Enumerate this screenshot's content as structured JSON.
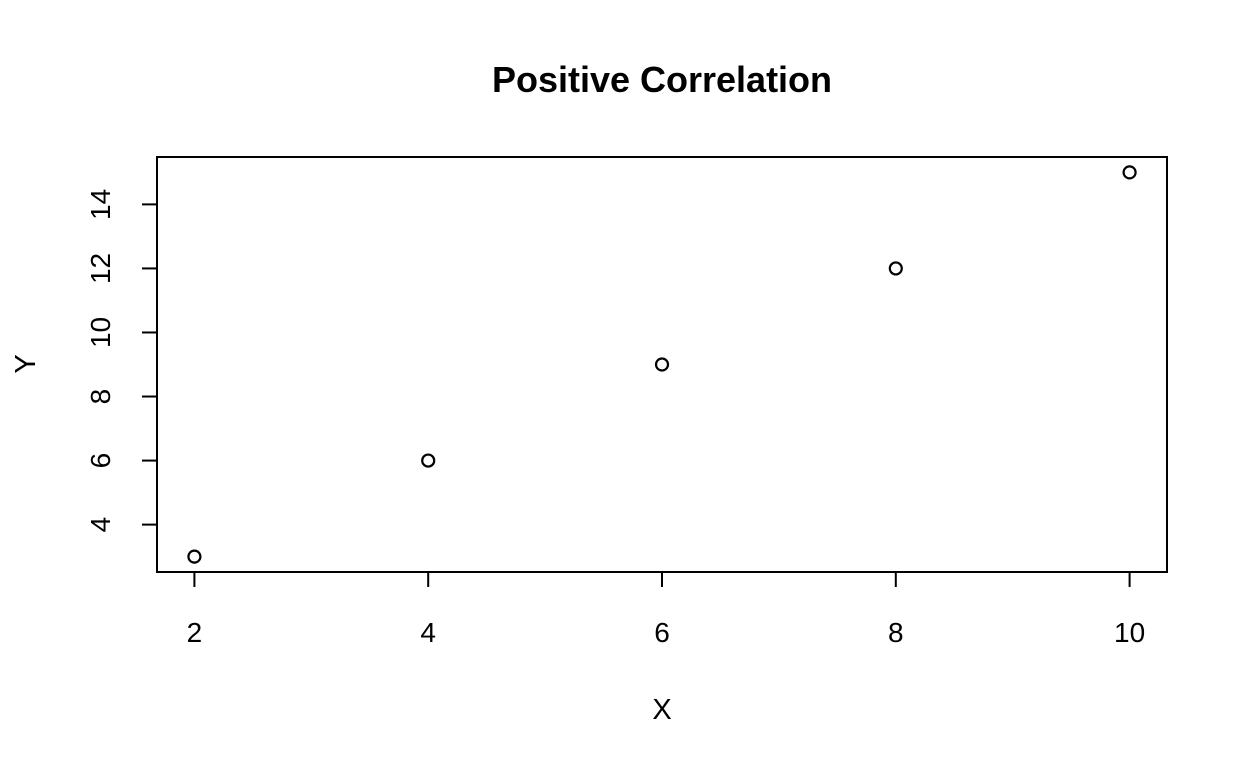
{
  "chart_data": {
    "type": "scatter",
    "title": "Positive Correlation",
    "xlabel": "X",
    "ylabel": "Y",
    "x": [
      2,
      4,
      6,
      8,
      10
    ],
    "y": [
      3,
      6,
      9,
      12,
      15
    ],
    "xlim": [
      1.68,
      10.32
    ],
    "ylim": [
      2.52,
      15.48
    ],
    "x_ticks": [
      2,
      4,
      6,
      8,
      10
    ],
    "y_ticks": [
      4,
      6,
      8,
      10,
      12,
      14
    ],
    "grid": false,
    "legend": "none",
    "marker": "open-circle",
    "colors": {
      "point": "#000000",
      "axis": "#000000",
      "background": "#ffffff"
    }
  }
}
